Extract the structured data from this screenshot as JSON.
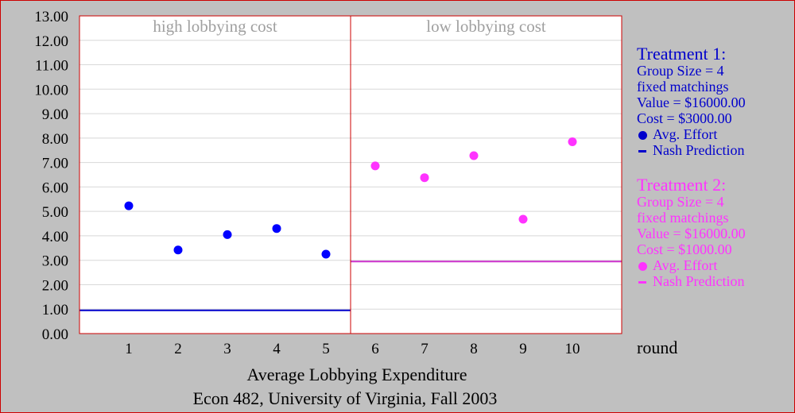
{
  "chart_data": {
    "type": "scatter",
    "title": "Average Lobbying Expenditure",
    "subtitle": "Econ 482, University of Virginia, Fall 2003",
    "xlabel": "round",
    "ylabel": "",
    "x_ticks": [
      1,
      2,
      3,
      4,
      5,
      6,
      7,
      8,
      9,
      10
    ],
    "y_ticks": [
      "0.00",
      "1.00",
      "2.00",
      "3.00",
      "4.00",
      "5.00",
      "6.00",
      "7.00",
      "8.00",
      "9.00",
      "10.00",
      "11.00",
      "12.00",
      "13.00"
    ],
    "xlim": [
      0,
      11
    ],
    "ylim": [
      0,
      13
    ],
    "grid": true,
    "panels": [
      {
        "label": "high lobbying cost",
        "x_range": [
          0.5,
          5.5
        ]
      },
      {
        "label": "low lobbying cost",
        "x_range": [
          5.5,
          11
        ]
      }
    ],
    "series": [
      {
        "name": "Avg. Effort",
        "treatment": 1,
        "color": "#0000ff",
        "x": [
          1,
          2,
          3,
          4,
          5
        ],
        "y": [
          5.23,
          3.42,
          4.05,
          4.3,
          3.25
        ]
      },
      {
        "name": "Avg. Effort",
        "treatment": 2,
        "color": "#ff33ff",
        "x": [
          6,
          7,
          8,
          9,
          10
        ],
        "y": [
          6.86,
          6.38,
          7.28,
          4.68,
          7.85
        ]
      }
    ],
    "reference_lines": [
      {
        "name": "Nash Prediction",
        "treatment": 1,
        "color": "#0000cc",
        "y": 0.95,
        "x_range": [
          0,
          5.5
        ]
      },
      {
        "name": "Nash Prediction",
        "treatment": 2,
        "color": "#cc33cc",
        "y": 2.95,
        "x_range": [
          5.5,
          11
        ]
      }
    ]
  },
  "legend": {
    "treatment1": {
      "color": "#0000cc",
      "title": "Treatment 1:",
      "lines": [
        "Group Size = 4",
        "fixed matchings",
        "Value = $16000.00",
        "Cost = $3000.00"
      ],
      "effort_label": "Avg. Effort",
      "nash_label": "Nash Prediction"
    },
    "treatment2": {
      "color": "#ff33ff",
      "title": "Treatment 2:",
      "lines": [
        "Group Size = 4",
        "fixed matchings",
        "Value = $16000.00",
        "Cost = $1000.00"
      ],
      "effort_label": "Avg. Effort",
      "nash_label": "Nash Prediction"
    }
  },
  "colors": {
    "background": "#c0c0c0",
    "plot_background": "#ffffff",
    "plot_border": "#cc0000",
    "gridline": "#d8d8d8"
  }
}
